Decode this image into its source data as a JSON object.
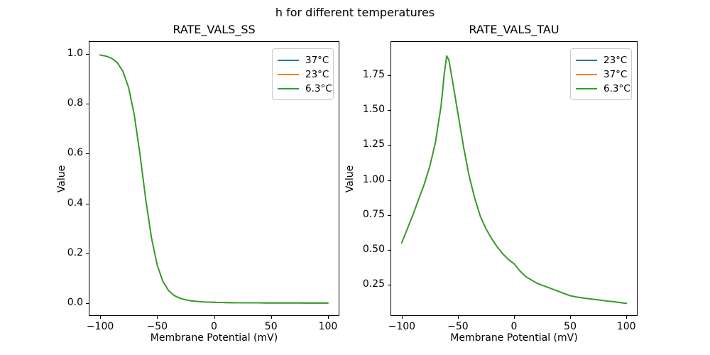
{
  "figure": {
    "title": "h for different temperatures",
    "background": "#ffffff",
    "text_color": "#000000"
  },
  "chart_data": [
    {
      "type": "line",
      "title": "RATE_VALS_SS",
      "xlabel": "Membrane Potential (mV)",
      "ylabel": "Value",
      "xlim": [
        -110,
        110
      ],
      "ylim": [
        -0.052,
        1.052
      ],
      "xticks": [
        -100,
        -50,
        0,
        50,
        100
      ],
      "xtick_labels": [
        "−100",
        "−50",
        "0",
        "50",
        "100"
      ],
      "yticks": [
        0.0,
        0.2,
        0.4,
        0.6,
        0.8,
        1.0
      ],
      "ytick_labels": [
        "0.0",
        "0.2",
        "0.4",
        "0.6",
        "0.8",
        "1.0"
      ],
      "grid": false,
      "legend_position": "upper right",
      "legend": [
        {
          "label": "37°C",
          "color": "#1f77b4"
        },
        {
          "label": "23°C",
          "color": "#ff7f0e"
        },
        {
          "label": "6.3°C",
          "color": "#2ca02c"
        }
      ],
      "all_series_overlap": true,
      "x": [
        -100,
        -95,
        -90,
        -85,
        -80,
        -75,
        -70,
        -65,
        -60,
        -55,
        -50,
        -45,
        -40,
        -35,
        -30,
        -25,
        -20,
        -15,
        -10,
        -5,
        0,
        5,
        10,
        15,
        20,
        25,
        30,
        35,
        40,
        45,
        50,
        55,
        60,
        65,
        70,
        75,
        80,
        85,
        90,
        95,
        100
      ],
      "values": [
        0.9963,
        0.9922,
        0.9836,
        0.966,
        0.931,
        0.8651,
        0.7541,
        0.5961,
        0.4181,
        0.2626,
        0.1534,
        0.0874,
        0.0504,
        0.0303,
        0.0192,
        0.0128,
        0.0089,
        0.0065,
        0.0048,
        0.0036,
        0.0028,
        0.0021,
        0.0017,
        0.0013,
        0.001,
        0.0008,
        0.0006,
        0.0005,
        0.0004,
        0.0003,
        0.0002,
        0.0002,
        0.0001,
        0.0001,
        0.0001,
        0.0001,
        0.0,
        0.0,
        0.0,
        0.0,
        0.0
      ],
      "series": [
        {
          "name": "37°C",
          "color": "#1f77b4"
        },
        {
          "name": "23°C",
          "color": "#ff7f0e"
        },
        {
          "name": "6.3°C",
          "color": "#2ca02c"
        }
      ]
    },
    {
      "type": "line",
      "title": "RATE_VALS_TAU",
      "xlabel": "Membrane Potential (mV)",
      "ylabel": "Value",
      "xlim": [
        -110,
        110
      ],
      "ylim": [
        0.025,
        1.996
      ],
      "xticks": [
        -100,
        -50,
        0,
        50,
        100
      ],
      "xtick_labels": [
        "−100",
        "−50",
        "0",
        "50",
        "100"
      ],
      "yticks": [
        0.25,
        0.5,
        0.75,
        1.0,
        1.25,
        1.5,
        1.75
      ],
      "ytick_labels": [
        "0.25",
        "0.50",
        "0.75",
        "1.00",
        "1.25",
        "1.50",
        "1.75"
      ],
      "grid": false,
      "legend_position": "upper right",
      "legend": [
        {
          "label": "23°C",
          "color": "#1f77b4"
        },
        {
          "label": "37°C",
          "color": "#ff7f0e"
        },
        {
          "label": "6.3°C",
          "color": "#2ca02c"
        }
      ],
      "all_series_overlap": true,
      "x": [
        -100,
        -95,
        -90,
        -85,
        -80,
        -75,
        -70,
        -65,
        -62,
        -60,
        -58,
        -55,
        -50,
        -45,
        -40,
        -35,
        -30,
        -25,
        -20,
        -15,
        -10,
        -5,
        0,
        5,
        10,
        15,
        20,
        25,
        30,
        35,
        40,
        45,
        50,
        55,
        60,
        65,
        70,
        75,
        80,
        85,
        90,
        95,
        100
      ],
      "values": [
        0.55,
        0.65,
        0.75,
        0.86,
        0.97,
        1.1,
        1.27,
        1.53,
        1.77,
        1.89,
        1.86,
        1.72,
        1.48,
        1.24,
        1.03,
        0.87,
        0.74,
        0.65,
        0.58,
        0.52,
        0.47,
        0.43,
        0.4,
        0.35,
        0.31,
        0.285,
        0.262,
        0.245,
        0.23,
        0.215,
        0.2,
        0.185,
        0.17,
        0.162,
        0.156,
        0.15,
        0.145,
        0.14,
        0.135,
        0.13,
        0.126,
        0.12,
        0.115
      ],
      "series": [
        {
          "name": "23°C",
          "color": "#1f77b4"
        },
        {
          "name": "37°C",
          "color": "#ff7f0e"
        },
        {
          "name": "6.3°C",
          "color": "#2ca02c"
        }
      ]
    }
  ]
}
